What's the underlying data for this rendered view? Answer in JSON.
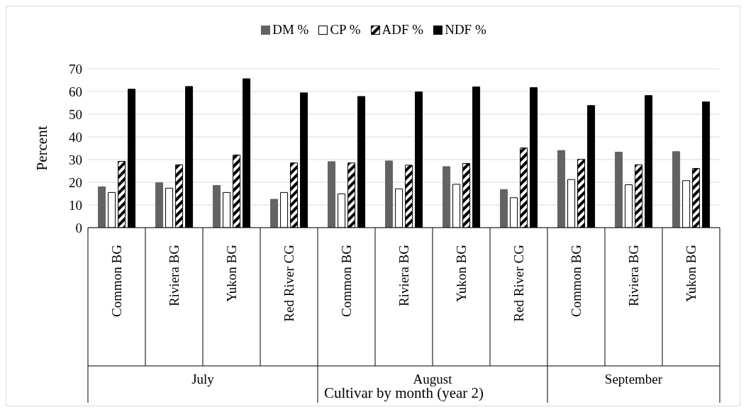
{
  "chart_data": {
    "type": "bar",
    "xlabel": "Cultivar by month (year 2)",
    "ylabel": "Percent",
    "categories": [
      "Common BG",
      "Riviera BG",
      "Yukon BG",
      "Red River CG",
      "Common BG",
      "Riviera BG",
      "Yukon BG",
      "Red River CG",
      "Common BG",
      "Riviera BG",
      "Yukon BG"
    ],
    "series": [
      {
        "name": "DM %",
        "color": "#636363",
        "values": [
          18.0,
          19.8,
          18.6,
          12.5,
          29.1,
          29.4,
          26.9,
          16.8,
          34.0,
          33.3,
          33.5
        ]
      },
      {
        "name": "CP %",
        "color": "#ffffff",
        "values": [
          15.5,
          17.4,
          15.5,
          15.5,
          14.9,
          17.1,
          19.1,
          13.2,
          21.2,
          18.9,
          20.7
        ]
      },
      {
        "name": "ADF %",
        "color": "#000000",
        "values": [
          29.2,
          27.7,
          32.0,
          28.5,
          28.5,
          27.5,
          28.3,
          35.1,
          30.1,
          27.7,
          26.1
        ]
      },
      {
        "name": "NDF %",
        "color": "#000000",
        "values": [
          61.0,
          62.2,
          65.6,
          59.4,
          57.8,
          59.8,
          62.0,
          61.7,
          53.8,
          58.2,
          55.4
        ]
      }
    ],
    "annotations": [
      "July",
      "August",
      "September"
    ],
    "ylim": [
      0,
      70
    ],
    "yticks": [
      0,
      10,
      20,
      30,
      40,
      50,
      60,
      70
    ],
    "grid": "y",
    "legend": "top"
  }
}
